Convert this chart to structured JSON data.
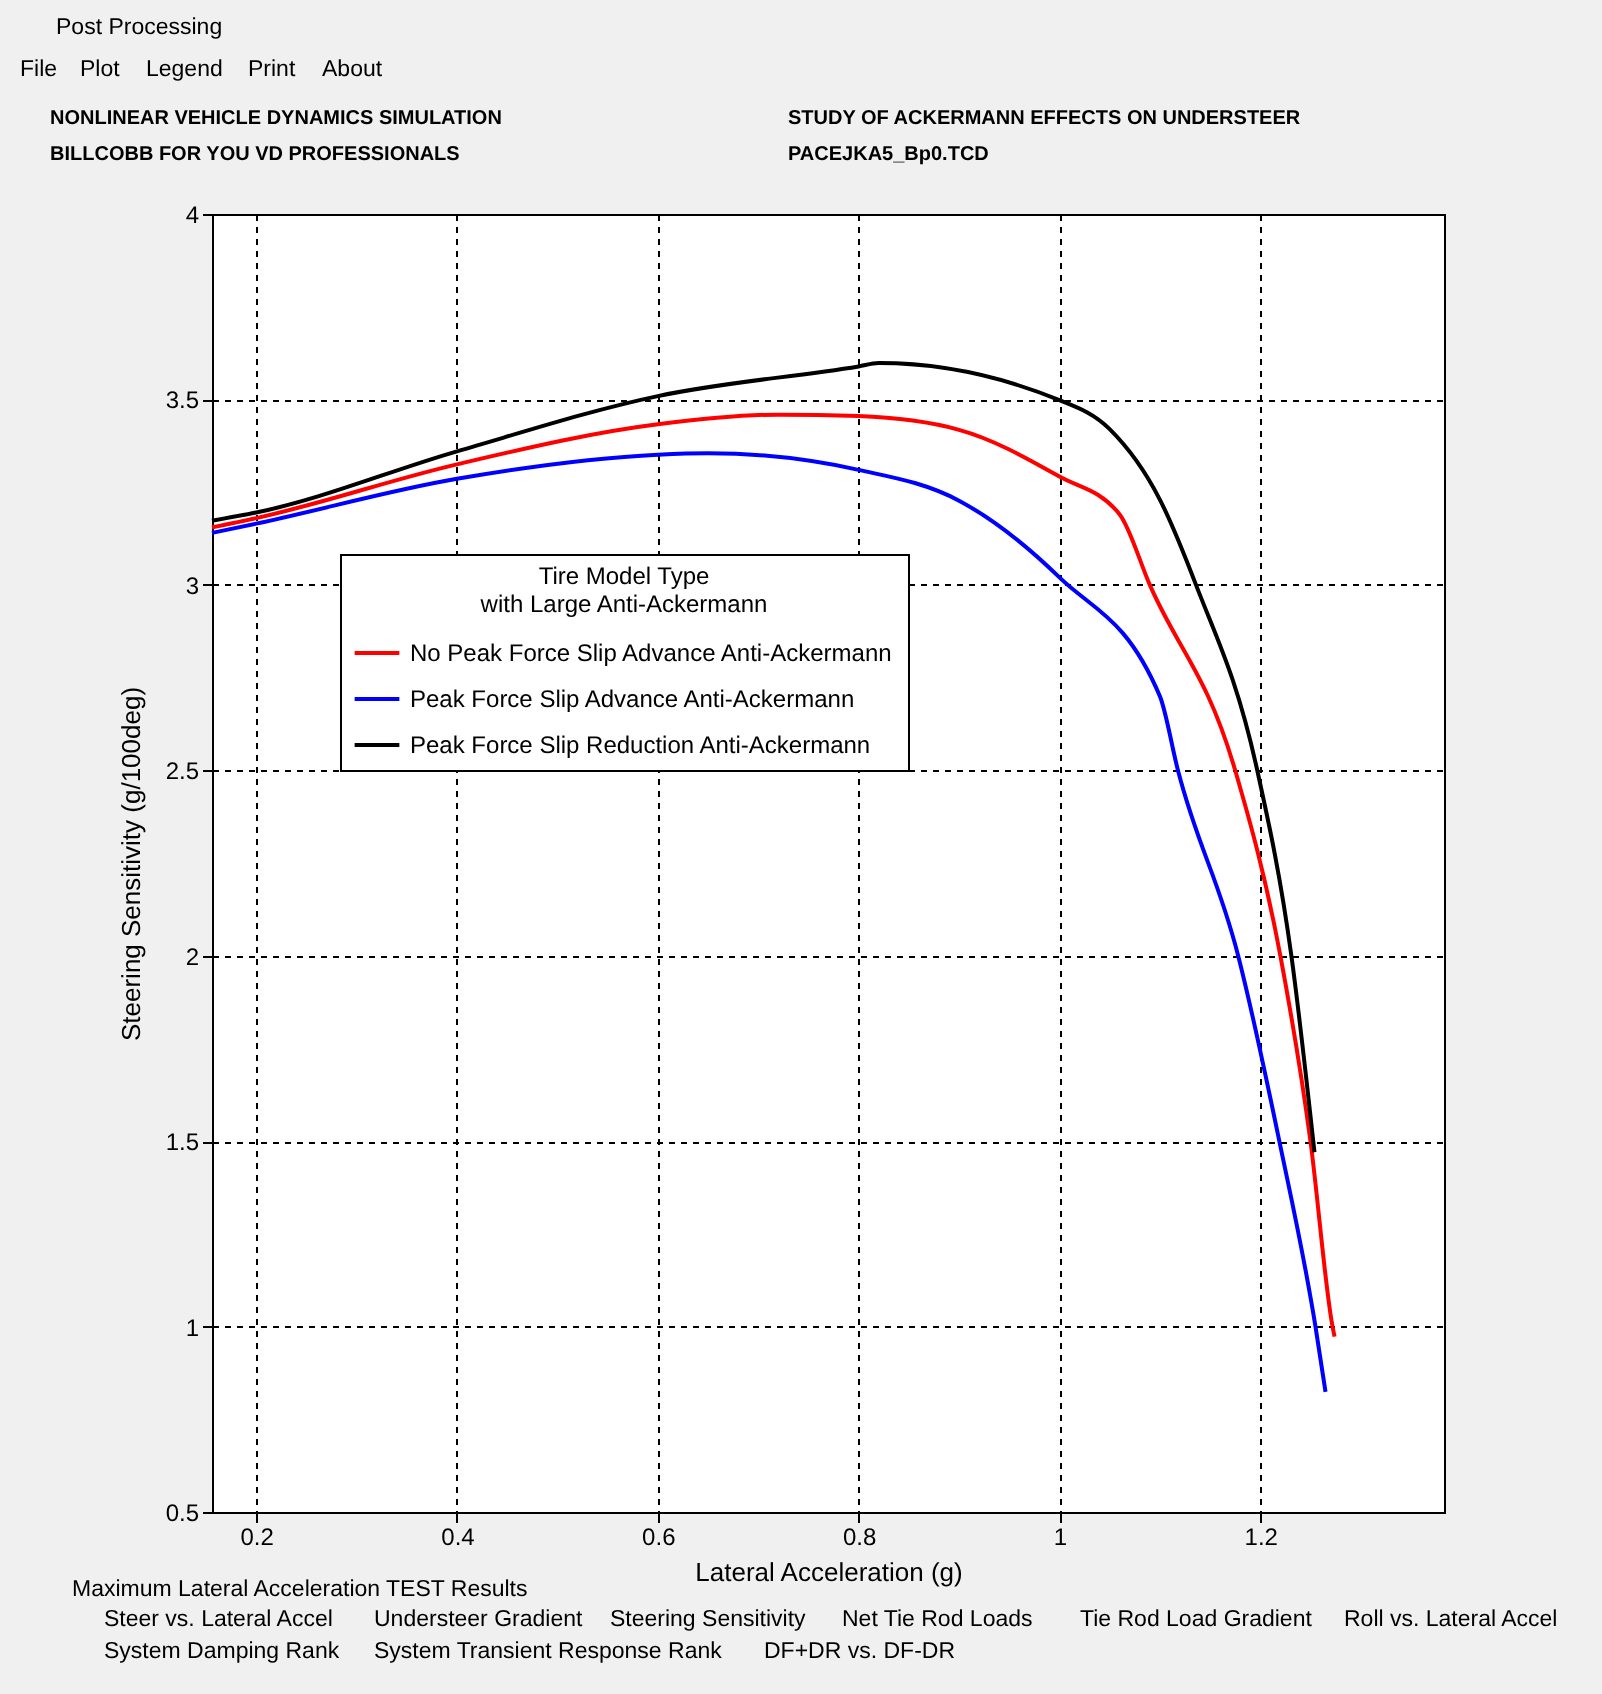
{
  "chart_data": {
    "type": "line",
    "xlabel": "Lateral Acceleration (g)",
    "ylabel": "Steering Sensitivity (g/100deg)",
    "legend_title": "Tire Model Type\nwith Large Anti-Ackermann",
    "xlim": [
      0.156,
      1.383
    ],
    "xticks": [
      0.2,
      0.4,
      0.6,
      0.8,
      1,
      1.2
    ],
    "ylim": [
      0.5,
      4
    ],
    "yticks": [
      0.5,
      1,
      1.5,
      2,
      2.5,
      3,
      3.5,
      4
    ],
    "grid": true,
    "legend": "left",
    "marker": "none",
    "line_style": "solid",
    "series": [
      {
        "name": "No Peak Force Slip Advance Anti-Ackermann",
        "color": "#ff0000",
        "x": [
          0.156,
          0.2,
          0.4,
          0.6,
          0.72,
          0.8,
          0.9,
          1.0,
          1.06,
          1.09,
          1.175,
          1.22,
          1.25,
          1.272,
          1.274
        ],
        "values": [
          3.155,
          3.18,
          3.325,
          3.433,
          3.459,
          3.455,
          3.418,
          3.292,
          3.19,
          3.0,
          2.5,
          2.0,
          1.5,
          1.0,
          0.973
        ]
      },
      {
        "name": "Peak Force Slip Advance Anti-Ackermann",
        "color": "#0000ff",
        "x": [
          0.156,
          0.2,
          0.4,
          0.6,
          0.65,
          0.8,
          0.9,
          1.0,
          1.1,
          1.118,
          1.178,
          1.219,
          1.255,
          1.265
        ],
        "values": [
          3.14,
          3.165,
          3.286,
          3.351,
          3.355,
          3.31,
          3.227,
          3.02,
          2.7,
          2.5,
          2.0,
          1.5,
          1.0,
          0.824
        ]
      },
      {
        "name": "Peak Force Slip Reduction Anti-Ackermann",
        "color": "#000000",
        "x": [
          0.156,
          0.2,
          0.4,
          0.6,
          0.8,
          0.82,
          1.0,
          1.05,
          1.1,
          1.136,
          1.197,
          1.231,
          1.254
        ],
        "values": [
          3.173,
          3.195,
          3.36,
          3.509,
          3.589,
          3.598,
          3.498,
          3.42,
          3.23,
          3.0,
          2.5,
          2.0,
          1.47
        ]
      }
    ],
    "annotations": [
      "Post Processing",
      "File",
      "Plot",
      "Legend",
      "Print",
      "About",
      "NONLINEAR VEHICLE DYNAMICS SIMULATION",
      "BILLCOBB   FOR YOU VD PROFESSIONALS",
      "STUDY OF ACKERMANN EFFECTS ON UNDERSTEER",
      "PACEJKA5_Bp0.TCD",
      "Maximum Lateral Acceleration TEST Results",
      "Steer vs. Lateral Accel",
      "Understeer Gradient",
      "Steering Sensitivity",
      "Net Tie Rod Loads",
      "Tie Rod Load Gradient",
      "Roll vs. Lateral Accel",
      "System Damping Rank",
      "System Transient Response Rank",
      "DF+DR  vs. DF-DR"
    ]
  }
}
